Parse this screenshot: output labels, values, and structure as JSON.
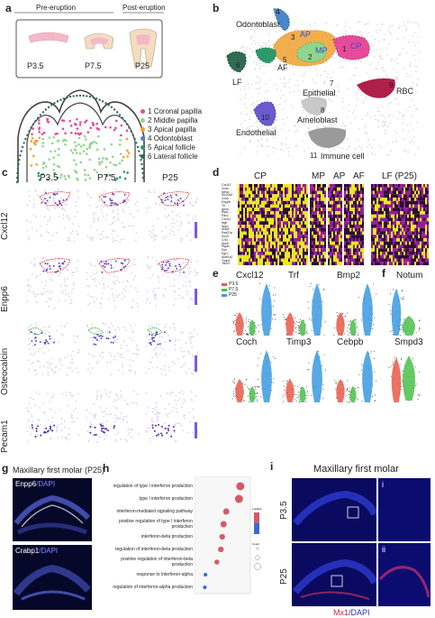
{
  "panels": {
    "a": {
      "label": "a",
      "pre_eruption": "Pre-eruption",
      "post_eruption": "Post-eruption",
      "stages": [
        "P3.5",
        "P7.5",
        "P25"
      ],
      "legend": [
        {
          "num": "1",
          "name": "Coronal papilla",
          "color": "#e84a9a"
        },
        {
          "num": "2",
          "name": "Middle papilla",
          "color": "#8fd68c"
        },
        {
          "num": "3",
          "name": "Apical papilla",
          "color": "#f0a030"
        },
        {
          "num": "4",
          "name": "Odontoblast",
          "color": "#4a86c8"
        },
        {
          "num": "5",
          "name": "Apical follicle",
          "color": "#2a9a6a"
        },
        {
          "num": "6",
          "name": "Lateral follicle",
          "color": "#2f6b55"
        }
      ]
    },
    "b": {
      "label": "b",
      "clusters": [
        {
          "num": "1",
          "name": "CP"
        },
        {
          "num": "2",
          "name": "MP"
        },
        {
          "num": "3",
          "name": "AP"
        },
        {
          "num": "4",
          "name": ""
        },
        {
          "num": "5",
          "name": "AF"
        },
        {
          "num": "6",
          "name": "LF"
        },
        {
          "num": "7",
          "name": "Epithelial"
        },
        {
          "num": "8",
          "name": "Ameloblast"
        },
        {
          "num": "9",
          "name": "RBC"
        },
        {
          "num": "10",
          "name": "Endothelial"
        },
        {
          "num": "11",
          "name": "Immune cell"
        }
      ],
      "odontoblast": "Odontoblast"
    },
    "c": {
      "label": "c",
      "columns": [
        "P3.5",
        "P7.5",
        "P25"
      ],
      "rows": [
        "Cxcl12",
        "Enpp6",
        "Osteocalcin",
        "Pecam1"
      ]
    },
    "d": {
      "label": "d",
      "groups": [
        "CP",
        "MP",
        "AP",
        "AF",
        "LF (P25)"
      ],
      "genes": [
        "Cxcl12",
        "Vcan",
        "Meox",
        "Slc20a2",
        "Coch",
        "Enpp6",
        "Ttl",
        "Aplnr",
        "Rgs1",
        "Pax1",
        "Cxcl12",
        "Ngfr",
        "Spp1",
        "Acta2",
        "Rad21a",
        "Sox9",
        "Crlf1",
        "Ncstl",
        "Ptgds",
        "Dcn",
        "Egr1",
        "Aldh1a2",
        "Timp3",
        "Tshz3"
      ]
    },
    "e": {
      "label": "e",
      "legend": [
        "P3.5",
        "P7.5",
        "P25"
      ],
      "legend_colors": [
        "#e85a4a",
        "#4ac04a",
        "#3a9ae0"
      ],
      "genes": [
        "Cxcl12",
        "Trf",
        "Bmp2",
        "Coch",
        "Timp3",
        "Cebpb"
      ]
    },
    "f": {
      "label": "f",
      "genes": [
        "Notum",
        "Smpd3"
      ]
    },
    "g": {
      "label": "g",
      "title": "Maxillary first molar (P25)",
      "img1_label_a": "Enpp6",
      "img1_label_b": "/DAPI",
      "img2_label_a": "Crabp1",
      "img2_label_b": "/DAPI"
    },
    "h": {
      "label": "h",
      "terms": [
        "regulation of type I interferon production",
        "type I interferon production",
        "interferon-mediated signaling pathway",
        "positive regulation of type I interferon production",
        "interferon-beta production",
        "regulation of interferon-beta production",
        "positive regulation of interferon-beta production",
        "response to interferon-alpha",
        "regulation of interferon-alpha production"
      ],
      "legend_title": "p.adjust",
      "count_title": "Count"
    },
    "i": {
      "label": "i",
      "title": "Maxillary first molar",
      "rows": [
        "P3.5",
        "P25"
      ],
      "insets": [
        "i",
        "ii"
      ],
      "caption_a": "Mx1",
      "caption_b": "/DAPI"
    }
  },
  "chart_data": [
    {
      "type": "scatter",
      "panel": "h",
      "x": [
        0.093,
        0.091,
        0.072,
        0.068,
        0.066,
        0.064,
        0.058,
        0.041,
        0.04
      ],
      "y": [
        "regulation of type I interferon production",
        "type I interferon production",
        "interferon-mediated signaling pathway",
        "positive regulation of type I interferon production",
        "interferon-beta production",
        "regulation of interferon-beta production",
        "positive regulation of interferon-beta production",
        "response to interferon-alpha",
        "regulation of interferon-alpha production"
      ],
      "size": [
        10,
        10,
        7,
        7,
        6,
        6,
        5,
        3,
        3
      ],
      "p_adjust": [
        0.035,
        0.035,
        0.028,
        0.028,
        0.03,
        0.032,
        0.035,
        0.02,
        0.01
      ]
    }
  ]
}
